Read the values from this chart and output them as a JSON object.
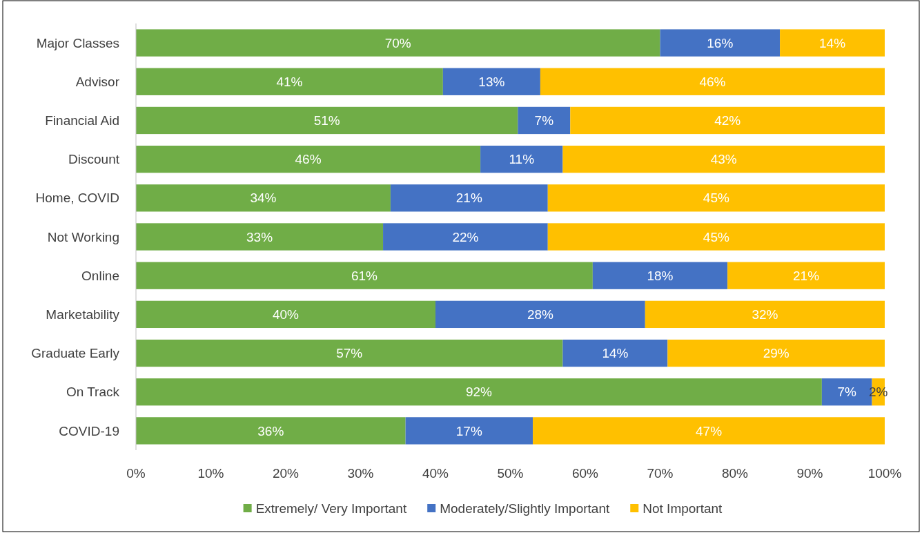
{
  "chart_data": {
    "type": "bar",
    "orientation": "horizontal",
    "stacked": true,
    "categories": [
      "Major Classes",
      "Advisor",
      "Financial Aid",
      "Discount",
      "Home, COVID",
      "Not Working",
      "Online",
      "Marketability",
      "Graduate Early",
      "On Track",
      "COVID-19"
    ],
    "series": [
      {
        "name": "Extremely/ Very Important",
        "color": "#70ad47",
        "values": [
          70,
          41,
          51,
          46,
          34,
          33,
          61,
          40,
          57,
          91.6,
          36
        ],
        "value_labels": [
          "70%",
          "41%",
          "51%",
          "46%",
          "34%",
          "33%",
          "61%",
          "40%",
          "57%",
          "92%",
          "36%"
        ]
      },
      {
        "name": "Moderately/Slightly Important",
        "color": "#4472c4",
        "values": [
          16,
          13,
          7,
          11,
          21,
          22,
          18,
          28,
          14,
          6.7,
          17
        ],
        "value_labels": [
          "16%",
          "13%",
          "7%",
          "11%",
          "21%",
          "22%",
          "18%",
          "28%",
          "14%",
          "7%",
          "17%"
        ]
      },
      {
        "name": "Not Important",
        "color": "#ffc000",
        "values": [
          14,
          46,
          42,
          43,
          45,
          45,
          21,
          32,
          29,
          1.7,
          47
        ],
        "value_labels": [
          "14%",
          "46%",
          "42%",
          "43%",
          "45%",
          "45%",
          "21%",
          "32%",
          "29%",
          "2%",
          "47%"
        ]
      }
    ],
    "xlim": [
      0,
      100
    ],
    "xticks": [
      {
        "value": 0,
        "label": "0%"
      },
      {
        "value": 10,
        "label": "10%"
      },
      {
        "value": 20,
        "label": "20%"
      },
      {
        "value": 30,
        "label": "30%"
      },
      {
        "value": 40,
        "label": "40%"
      },
      {
        "value": 50,
        "label": "50%"
      },
      {
        "value": 60,
        "label": "60%"
      },
      {
        "value": 70,
        "label": "70%"
      },
      {
        "value": 80,
        "label": "80%"
      },
      {
        "value": 90,
        "label": "90%"
      },
      {
        "value": 100,
        "label": "100%"
      }
    ],
    "grid": false,
    "legend": "bottom"
  }
}
